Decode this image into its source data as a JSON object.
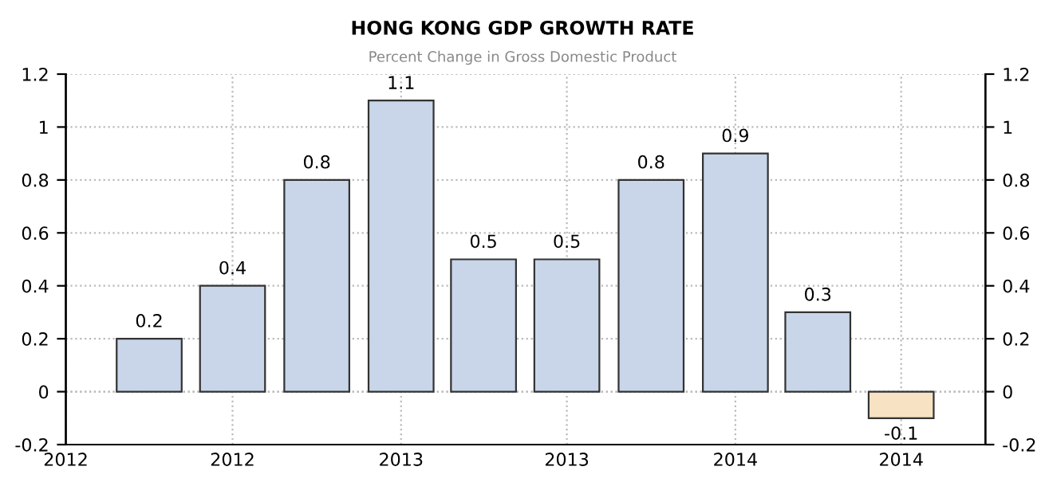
{
  "chart_data": {
    "type": "bar",
    "title": "HONG KONG GDP GROWTH RATE",
    "subtitle": "Percent Change in Gross Domestic Product",
    "x": [
      "2012-04",
      "2012-07",
      "2012-10",
      "2013-01",
      "2013-04",
      "2013-07",
      "2013-10",
      "2014-01",
      "2014-04",
      "2014-07"
    ],
    "values": [
      0.2,
      0.4,
      0.8,
      1.1,
      0.5,
      0.5,
      0.8,
      0.9,
      0.3,
      -0.1
    ],
    "colors": [
      "#c9d6ea",
      "#c9d6ea",
      "#c9d6ea",
      "#c9d6ea",
      "#c9d6ea",
      "#c9d6ea",
      "#c9d6ea",
      "#c9d6ea",
      "#c9d6ea",
      "#f7e3c3"
    ],
    "data_labels": true,
    "xlim": [
      "2012-01",
      "2014-10"
    ],
    "xticks": [
      {
        "value": "2012-01",
        "label": "2012"
      },
      {
        "value": "2012-07",
        "label": "2012"
      },
      {
        "value": "2013-01",
        "label": "2013"
      },
      {
        "value": "2013-07",
        "label": "2013"
      },
      {
        "value": "2014-01",
        "label": "2014"
      },
      {
        "value": "2014-07",
        "label": "2014"
      }
    ],
    "ylim": [
      -0.2,
      1.2
    ],
    "yticks": [
      -0.2,
      0,
      0.2,
      0.4,
      0.6,
      0.8,
      1,
      1.2
    ],
    "y2lim": [
      -0.2,
      1.2
    ],
    "y2ticks": [
      -0.2,
      0,
      0.2,
      0.4,
      0.6,
      0.8,
      1,
      1.2
    ],
    "grid": true
  }
}
